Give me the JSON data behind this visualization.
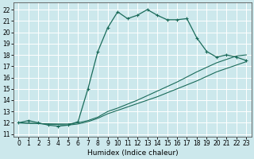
{
  "title": "",
  "xlabel": "Humidex (Indice chaleur)",
  "bg_color": "#cce8ec",
  "grid_color": "#ffffff",
  "line_color": "#1a6b5a",
  "xlim": [
    -0.5,
    23.5
  ],
  "ylim": [
    10.8,
    22.6
  ],
  "yticks": [
    11,
    12,
    13,
    14,
    15,
    16,
    17,
    18,
    19,
    20,
    21,
    22
  ],
  "xticks": [
    0,
    1,
    2,
    3,
    4,
    5,
    6,
    7,
    8,
    9,
    10,
    11,
    12,
    13,
    14,
    15,
    16,
    17,
    18,
    19,
    20,
    21,
    22,
    23
  ],
  "series1_x": [
    0,
    1,
    2,
    3,
    4,
    5,
    6,
    7,
    8,
    9,
    10,
    11,
    12,
    13,
    14,
    15,
    16,
    17,
    18,
    19,
    20,
    21,
    22,
    23
  ],
  "series1_y": [
    12.0,
    12.2,
    12.0,
    11.8,
    11.7,
    11.8,
    12.1,
    15.0,
    18.3,
    20.4,
    21.8,
    21.2,
    21.5,
    22.0,
    21.5,
    21.1,
    21.1,
    21.2,
    19.5,
    18.3,
    17.8,
    18.0,
    17.8,
    17.5
  ],
  "series2_x": [
    0,
    3,
    5,
    6,
    7,
    8,
    9,
    10,
    12,
    14,
    16,
    18,
    20,
    21,
    22,
    23
  ],
  "series2_y": [
    12.0,
    11.9,
    11.9,
    12.0,
    12.2,
    12.5,
    13.0,
    13.3,
    14.0,
    14.8,
    15.6,
    16.5,
    17.3,
    17.6,
    17.9,
    18.0
  ],
  "series3_x": [
    0,
    3,
    5,
    6,
    7,
    8,
    9,
    10,
    12,
    14,
    16,
    18,
    20,
    21,
    22,
    23
  ],
  "series3_y": [
    12.0,
    11.9,
    11.8,
    11.9,
    12.1,
    12.4,
    12.8,
    13.1,
    13.7,
    14.3,
    15.0,
    15.7,
    16.5,
    16.8,
    17.1,
    17.4
  ]
}
